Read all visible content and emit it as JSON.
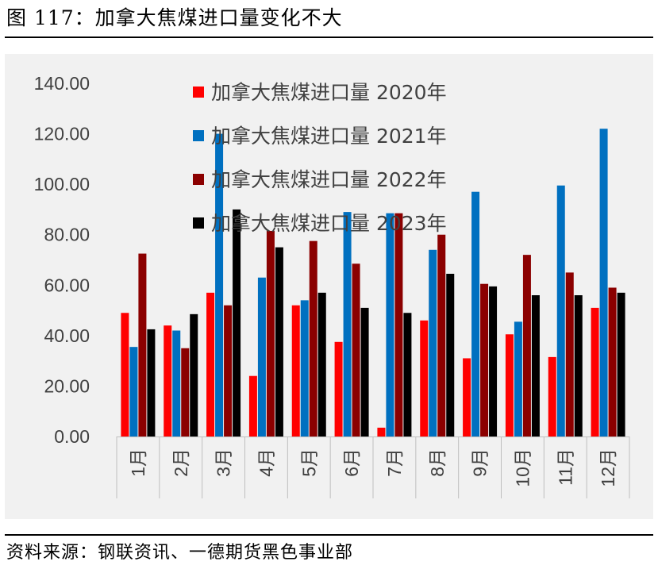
{
  "header": {
    "title": "图 117：加拿大焦煤进口量变化不大"
  },
  "footer": {
    "source": "资料来源：钢联资讯、一德期货黑色事业部"
  },
  "chart_data": {
    "type": "bar",
    "title": "",
    "xlabel": "",
    "ylabel": "",
    "ylim": [
      0,
      140
    ],
    "yticks": [
      "0.00",
      "20.00",
      "40.00",
      "60.00",
      "80.00",
      "100.00",
      "120.00",
      "140.00"
    ],
    "grid": false,
    "legend_position": "top",
    "categories": [
      "1月",
      "2月",
      "3月",
      "4月",
      "5月",
      "6月",
      "7月",
      "8月",
      "9月",
      "10月",
      "11月",
      "12月"
    ],
    "series": [
      {
        "name": "加拿大焦煤进口量 2020年",
        "color": "#ff0000",
        "values": [
          49.0,
          44.0,
          57.0,
          24.0,
          52.0,
          37.5,
          3.5,
          46.0,
          31.0,
          40.5,
          31.5,
          51.0
        ]
      },
      {
        "name": "加拿大焦煤进口量 2021年",
        "color": "#0070c0",
        "values": [
          35.5,
          42.0,
          120.0,
          63.0,
          54.0,
          89.0,
          88.5,
          74.0,
          97.0,
          45.5,
          99.5,
          122.0
        ]
      },
      {
        "name": "加拿大焦煤进口量 2022年",
        "color": "#8b0000",
        "values": [
          72.5,
          35.0,
          52.0,
          81.5,
          77.5,
          68.5,
          88.5,
          80.0,
          60.5,
          72.0,
          65.0,
          59.0
        ]
      },
      {
        "name": "加拿大焦煤进口量 2023年",
        "color": "#000000",
        "values": [
          42.5,
          48.5,
          90.0,
          75.0,
          57.0,
          51.0,
          49.0,
          64.5,
          59.5,
          56.0,
          56.0,
          57.0
        ]
      }
    ]
  }
}
